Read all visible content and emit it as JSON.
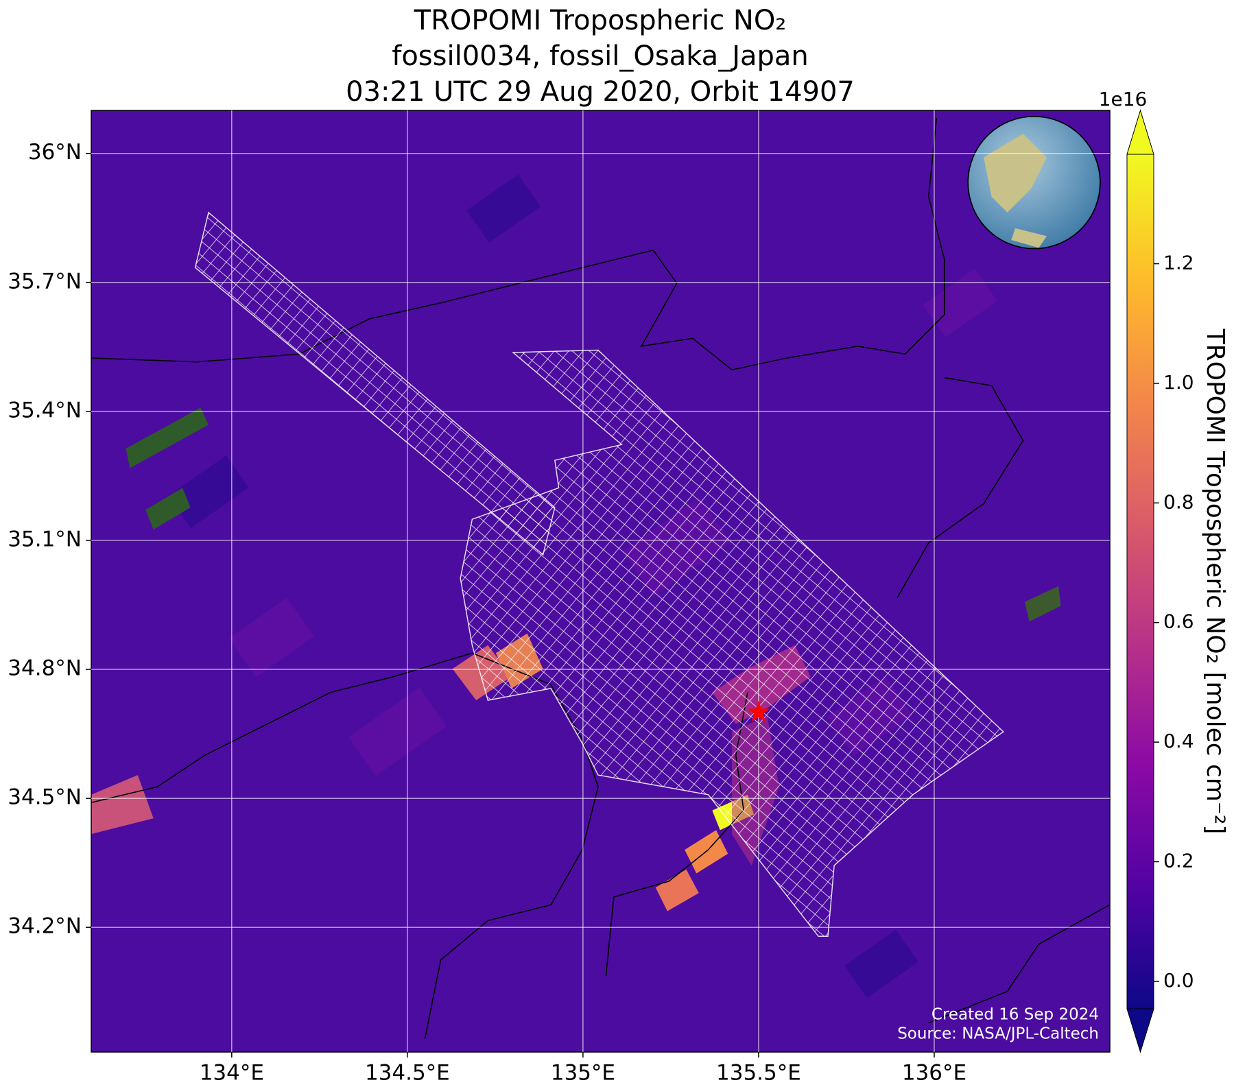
{
  "chart_data": {
    "type": "map",
    "title": [
      "TROPOMI Tropospheric NO₂",
      "fossil0034, fossil_Osaka_Japan",
      "03:21 UTC 29 Aug 2020, Orbit 14907"
    ],
    "xlim": [
      133.6,
      136.5
    ],
    "ylim": [
      33.91,
      36.1
    ],
    "xticks": [
      {
        "value": 134,
        "label": "134°E"
      },
      {
        "value": 134.5,
        "label": "134.5°E"
      },
      {
        "value": 135,
        "label": "135°E"
      },
      {
        "value": 135.5,
        "label": "135.5°E"
      },
      {
        "value": 136,
        "label": "136°E"
      }
    ],
    "yticks": [
      {
        "value": 34.2,
        "label": "34.2°N"
      },
      {
        "value": 34.5,
        "label": "34.5°N"
      },
      {
        "value": 34.8,
        "label": "34.8°N"
      },
      {
        "value": 35.1,
        "label": "35.1°N"
      },
      {
        "value": 35.4,
        "label": "35.4°N"
      },
      {
        "value": 35.7,
        "label": "35.7°N"
      },
      {
        "value": 36,
        "label": "36°N"
      }
    ],
    "grid": true,
    "site": {
      "lon": 135.5,
      "lat": 34.7,
      "color": "#ff0000"
    },
    "colorbar": {
      "label": "TROPOMI Tropospheric NO₂ [molec cm⁻²]",
      "exponent": "1e16",
      "clim": [
        -0.046,
        1.383
      ],
      "ticks": [
        {
          "value": 0,
          "label": "0.0"
        },
        0.2,
        0.4,
        0.6,
        0.8,
        {
          "value": 1,
          "label": "1.0"
        },
        1.2
      ],
      "colormap": [
        "#0d0887",
        "#5302a3",
        "#8b0aa5",
        "#b83289",
        "#db5c68",
        "#f48849",
        "#febd2a",
        "#f0f921"
      ]
    },
    "credits": [
      "Created 16 Sep 2024",
      "Source: NASA/JPL-Caltech"
    ]
  }
}
